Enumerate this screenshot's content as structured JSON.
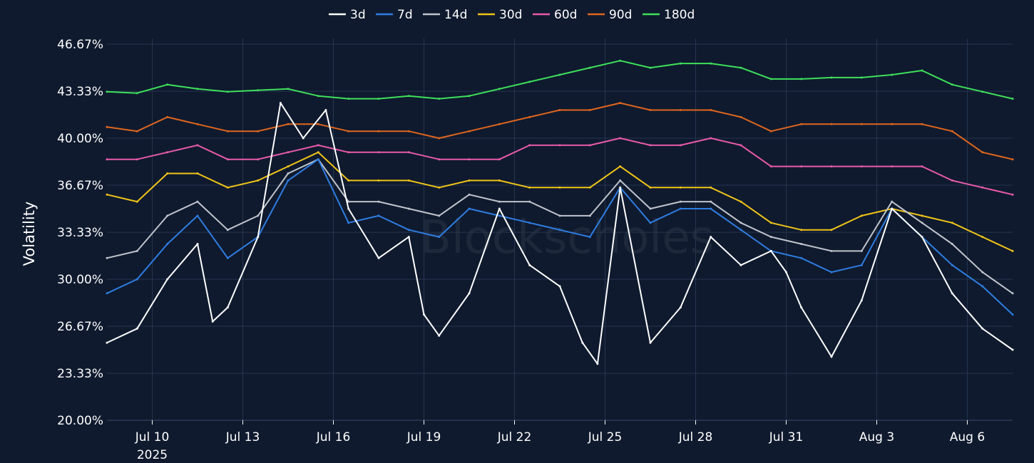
{
  "chart_data": {
    "type": "line",
    "watermark": "Blockscholes",
    "ylabel": "Volatility",
    "ylim": [
      20.0,
      46.67
    ],
    "y_ticks": [
      "20.00%",
      "23.33%",
      "26.67%",
      "30.00%",
      "33.33%",
      "36.67%",
      "40.00%",
      "43.33%",
      "46.67%"
    ],
    "y_tick_values": [
      20.0,
      23.33,
      26.67,
      30.0,
      33.33,
      36.67,
      40.0,
      43.33,
      46.67
    ],
    "x_range": [
      "2025-07-08 12:00",
      "2025-08-07 12:00"
    ],
    "x_ticks": [
      {
        "date": "2025-07-10",
        "label": "Jul 10",
        "sublabel": "2025"
      },
      {
        "date": "2025-07-13",
        "label": "Jul 13",
        "sublabel": ""
      },
      {
        "date": "2025-07-16",
        "label": "Jul 16",
        "sublabel": ""
      },
      {
        "date": "2025-07-19",
        "label": "Jul 19",
        "sublabel": ""
      },
      {
        "date": "2025-07-22",
        "label": "Jul 22",
        "sublabel": ""
      },
      {
        "date": "2025-07-25",
        "label": "Jul 25",
        "sublabel": ""
      },
      {
        "date": "2025-07-28",
        "label": "Jul 28",
        "sublabel": ""
      },
      {
        "date": "2025-07-31",
        "label": "Jul 31",
        "sublabel": ""
      },
      {
        "date": "2025-08-03",
        "label": "Aug 3",
        "sublabel": ""
      },
      {
        "date": "2025-08-06",
        "label": "Aug 6",
        "sublabel": ""
      }
    ],
    "grid": true,
    "legend_position": "top-center",
    "series": [
      {
        "name": "3d",
        "color": "#ffffff",
        "x": [
          "2025-07-08 12:00",
          "2025-07-09 12:00",
          "2025-07-10 12:00",
          "2025-07-11 12:00",
          "2025-07-12 00:00",
          "2025-07-12 12:00",
          "2025-07-13 12:00",
          "2025-07-14 06:00",
          "2025-07-15 00:00",
          "2025-07-15 18:00",
          "2025-07-16 12:00",
          "2025-07-17 12:00",
          "2025-07-18 12:00",
          "2025-07-19 00:00",
          "2025-07-19 12:00",
          "2025-07-20 12:00",
          "2025-07-21 12:00",
          "2025-07-22 12:00",
          "2025-07-23 12:00",
          "2025-07-24 06:00",
          "2025-07-24 18:00",
          "2025-07-25 12:00",
          "2025-07-26 12:00",
          "2025-07-27 12:00",
          "2025-07-28 12:00",
          "2025-07-29 12:00",
          "2025-07-30 12:00",
          "2025-07-31 00:00",
          "2025-07-31 12:00",
          "2025-08-01 12:00",
          "2025-08-02 12:00",
          "2025-08-03 12:00",
          "2025-08-04 12:00",
          "2025-08-05 12:00",
          "2025-08-06 12:00",
          "2025-08-07 12:00"
        ],
        "values": [
          25.5,
          26.5,
          30.0,
          32.5,
          27.0,
          28.0,
          33.0,
          42.5,
          40.0,
          42.0,
          35.0,
          31.5,
          33.0,
          27.5,
          26.0,
          29.0,
          35.0,
          31.0,
          29.5,
          25.5,
          24.0,
          36.5,
          25.5,
          28.0,
          33.0,
          31.0,
          32.0,
          30.5,
          28.0,
          24.5,
          28.5,
          35.0,
          33.0,
          29.0,
          26.5,
          25.0
        ]
      },
      {
        "name": "7d",
        "color": "#2f7de1",
        "x": [
          "2025-07-08 12:00",
          "2025-07-09 12:00",
          "2025-07-10 12:00",
          "2025-07-11 12:00",
          "2025-07-12 12:00",
          "2025-07-13 12:00",
          "2025-07-14 12:00",
          "2025-07-15 12:00",
          "2025-07-16 12:00",
          "2025-07-17 12:00",
          "2025-07-18 12:00",
          "2025-07-19 12:00",
          "2025-07-20 12:00",
          "2025-07-21 12:00",
          "2025-07-22 12:00",
          "2025-07-23 12:00",
          "2025-07-24 12:00",
          "2025-07-25 12:00",
          "2025-07-26 12:00",
          "2025-07-27 12:00",
          "2025-07-28 12:00",
          "2025-07-29 12:00",
          "2025-07-30 12:00",
          "2025-07-31 12:00",
          "2025-08-01 12:00",
          "2025-08-02 12:00",
          "2025-08-03 12:00",
          "2025-08-04 12:00",
          "2025-08-05 12:00",
          "2025-08-06 12:00",
          "2025-08-07 12:00"
        ],
        "values": [
          29.0,
          30.0,
          32.5,
          34.5,
          31.5,
          33.0,
          37.0,
          38.5,
          34.0,
          34.5,
          33.5,
          33.0,
          35.0,
          34.5,
          34.0,
          33.5,
          33.0,
          36.5,
          34.0,
          35.0,
          35.0,
          33.5,
          32.0,
          31.5,
          30.5,
          31.0,
          35.0,
          33.0,
          31.0,
          29.5,
          27.5
        ]
      },
      {
        "name": "14d",
        "color": "#c0c4cc",
        "x": [
          "2025-07-08 12:00",
          "2025-07-09 12:00",
          "2025-07-10 12:00",
          "2025-07-11 12:00",
          "2025-07-12 12:00",
          "2025-07-13 12:00",
          "2025-07-14 12:00",
          "2025-07-15 12:00",
          "2025-07-16 12:00",
          "2025-07-17 12:00",
          "2025-07-18 12:00",
          "2025-07-19 12:00",
          "2025-07-20 12:00",
          "2025-07-21 12:00",
          "2025-07-22 12:00",
          "2025-07-23 12:00",
          "2025-07-24 12:00",
          "2025-07-25 12:00",
          "2025-07-26 12:00",
          "2025-07-27 12:00",
          "2025-07-28 12:00",
          "2025-07-29 12:00",
          "2025-07-30 12:00",
          "2025-07-31 12:00",
          "2025-08-01 12:00",
          "2025-08-02 12:00",
          "2025-08-03 12:00",
          "2025-08-04 12:00",
          "2025-08-05 12:00",
          "2025-08-06 12:00",
          "2025-08-07 12:00"
        ],
        "values": [
          31.5,
          32.0,
          34.5,
          35.5,
          33.5,
          34.5,
          37.5,
          38.5,
          35.5,
          35.5,
          35.0,
          34.5,
          36.0,
          35.5,
          35.5,
          34.5,
          34.5,
          37.0,
          35.0,
          35.5,
          35.5,
          34.0,
          33.0,
          32.5,
          32.0,
          32.0,
          35.5,
          34.0,
          32.5,
          30.5,
          29.0
        ]
      },
      {
        "name": "30d",
        "color": "#f0c419",
        "x": [
          "2025-07-08 12:00",
          "2025-07-09 12:00",
          "2025-07-10 12:00",
          "2025-07-11 12:00",
          "2025-07-12 12:00",
          "2025-07-13 12:00",
          "2025-07-14 12:00",
          "2025-07-15 12:00",
          "2025-07-16 12:00",
          "2025-07-17 12:00",
          "2025-07-18 12:00",
          "2025-07-19 12:00",
          "2025-07-20 12:00",
          "2025-07-21 12:00",
          "2025-07-22 12:00",
          "2025-07-23 12:00",
          "2025-07-24 12:00",
          "2025-07-25 12:00",
          "2025-07-26 12:00",
          "2025-07-27 12:00",
          "2025-07-28 12:00",
          "2025-07-29 12:00",
          "2025-07-30 12:00",
          "2025-07-31 12:00",
          "2025-08-01 12:00",
          "2025-08-02 12:00",
          "2025-08-03 12:00",
          "2025-08-04 12:00",
          "2025-08-05 12:00",
          "2025-08-06 12:00",
          "2025-08-07 12:00"
        ],
        "values": [
          36.0,
          35.5,
          37.5,
          37.5,
          36.5,
          37.0,
          38.0,
          39.0,
          37.0,
          37.0,
          37.0,
          36.5,
          37.0,
          37.0,
          36.5,
          36.5,
          36.5,
          38.0,
          36.5,
          36.5,
          36.5,
          35.5,
          34.0,
          33.5,
          33.5,
          34.5,
          35.0,
          34.5,
          34.0,
          33.0,
          32.0
        ]
      },
      {
        "name": "60d",
        "color": "#e85aa8",
        "x": [
          "2025-07-08 12:00",
          "2025-07-09 12:00",
          "2025-07-10 12:00",
          "2025-07-11 12:00",
          "2025-07-12 12:00",
          "2025-07-13 12:00",
          "2025-07-14 12:00",
          "2025-07-15 12:00",
          "2025-07-16 12:00",
          "2025-07-17 12:00",
          "2025-07-18 12:00",
          "2025-07-19 12:00",
          "2025-07-20 12:00",
          "2025-07-21 12:00",
          "2025-07-22 12:00",
          "2025-07-23 12:00",
          "2025-07-24 12:00",
          "2025-07-25 12:00",
          "2025-07-26 12:00",
          "2025-07-27 12:00",
          "2025-07-28 12:00",
          "2025-07-29 12:00",
          "2025-07-30 12:00",
          "2025-07-31 12:00",
          "2025-08-01 12:00",
          "2025-08-02 12:00",
          "2025-08-03 12:00",
          "2025-08-04 12:00",
          "2025-08-05 12:00",
          "2025-08-06 12:00",
          "2025-08-07 12:00"
        ],
        "values": [
          38.5,
          38.5,
          39.0,
          39.5,
          38.5,
          38.5,
          39.0,
          39.5,
          39.0,
          39.0,
          39.0,
          38.5,
          38.5,
          38.5,
          39.5,
          39.5,
          39.5,
          40.0,
          39.5,
          39.5,
          40.0,
          39.5,
          38.0,
          38.0,
          38.0,
          38.0,
          38.0,
          38.0,
          37.0,
          36.5,
          36.0
        ]
      },
      {
        "name": "90d",
        "color": "#e0661e",
        "x": [
          "2025-07-08 12:00",
          "2025-07-09 12:00",
          "2025-07-10 12:00",
          "2025-07-11 12:00",
          "2025-07-12 12:00",
          "2025-07-13 12:00",
          "2025-07-14 12:00",
          "2025-07-15 12:00",
          "2025-07-16 12:00",
          "2025-07-17 12:00",
          "2025-07-18 12:00",
          "2025-07-19 12:00",
          "2025-07-20 12:00",
          "2025-07-21 12:00",
          "2025-07-22 12:00",
          "2025-07-23 12:00",
          "2025-07-24 12:00",
          "2025-07-25 12:00",
          "2025-07-26 12:00",
          "2025-07-27 12:00",
          "2025-07-28 12:00",
          "2025-07-29 12:00",
          "2025-07-30 12:00",
          "2025-07-31 12:00",
          "2025-08-01 12:00",
          "2025-08-02 12:00",
          "2025-08-03 12:00",
          "2025-08-04 12:00",
          "2025-08-05 12:00",
          "2025-08-06 12:00",
          "2025-08-07 12:00"
        ],
        "values": [
          40.8,
          40.5,
          41.5,
          41.0,
          40.5,
          40.5,
          41.0,
          41.0,
          40.5,
          40.5,
          40.5,
          40.0,
          40.5,
          41.0,
          41.5,
          42.0,
          42.0,
          42.5,
          42.0,
          42.0,
          42.0,
          41.5,
          40.5,
          41.0,
          41.0,
          41.0,
          41.0,
          41.0,
          40.5,
          39.0,
          38.5
        ]
      },
      {
        "name": "180d",
        "color": "#3ee05a",
        "x": [
          "2025-07-08 12:00",
          "2025-07-09 12:00",
          "2025-07-10 12:00",
          "2025-07-11 12:00",
          "2025-07-12 12:00",
          "2025-07-13 12:00",
          "2025-07-14 12:00",
          "2025-07-15 12:00",
          "2025-07-16 12:00",
          "2025-07-17 12:00",
          "2025-07-18 12:00",
          "2025-07-19 12:00",
          "2025-07-20 12:00",
          "2025-07-21 12:00",
          "2025-07-22 12:00",
          "2025-07-23 12:00",
          "2025-07-24 12:00",
          "2025-07-25 12:00",
          "2025-07-26 12:00",
          "2025-07-27 12:00",
          "2025-07-28 12:00",
          "2025-07-29 12:00",
          "2025-07-30 12:00",
          "2025-07-31 12:00",
          "2025-08-01 12:00",
          "2025-08-02 12:00",
          "2025-08-03 12:00",
          "2025-08-04 12:00",
          "2025-08-05 12:00",
          "2025-08-06 12:00",
          "2025-08-07 12:00"
        ],
        "values": [
          43.3,
          43.2,
          43.8,
          43.5,
          43.3,
          43.4,
          43.5,
          43.0,
          42.8,
          42.8,
          43.0,
          42.8,
          43.0,
          43.5,
          44.0,
          44.5,
          45.0,
          45.5,
          45.0,
          45.3,
          45.3,
          45.0,
          44.2,
          44.2,
          44.3,
          44.3,
          44.5,
          44.8,
          43.8,
          43.3,
          42.8
        ]
      }
    ]
  }
}
